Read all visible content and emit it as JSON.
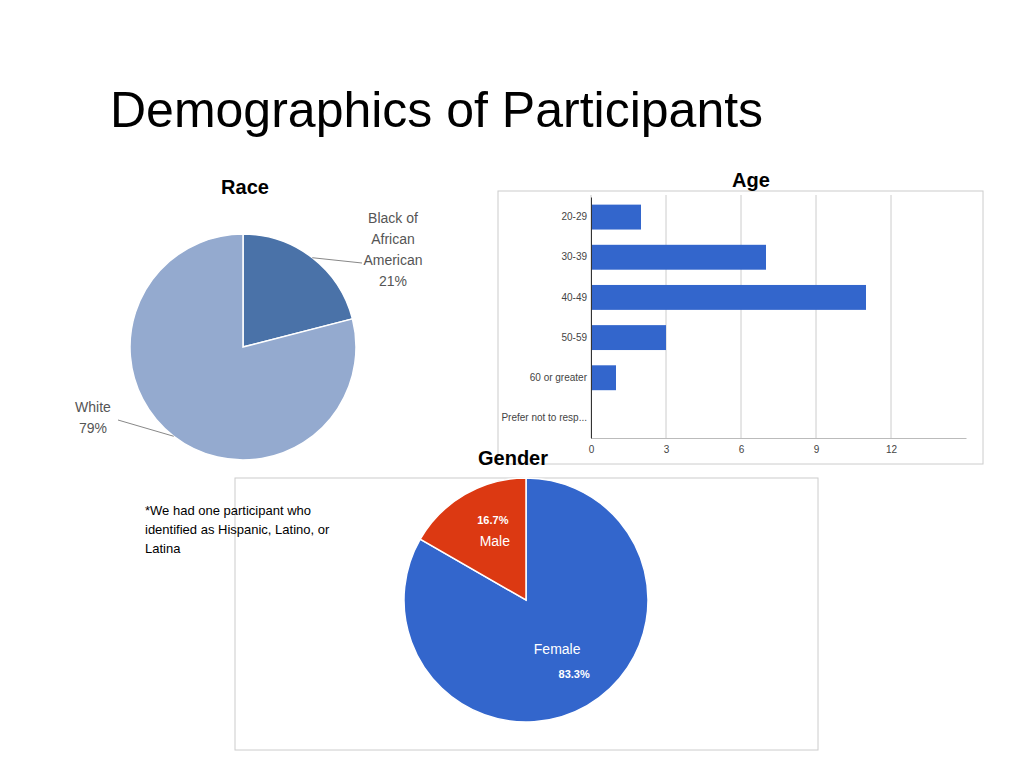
{
  "title": "Demographics of Participants",
  "chart_data": [
    {
      "type": "pie",
      "title": "Race",
      "categories": [
        "Black of African American",
        "White"
      ],
      "values": [
        21,
        79
      ],
      "value_labels": [
        "21%",
        "79%"
      ],
      "colors": [
        "#4a72a8",
        "#94aacf"
      ],
      "data_labels": true,
      "annotations": [
        "*We had one participant who identified as Hispanic, Latino, or Latina"
      ]
    },
    {
      "type": "bar",
      "title": "Age",
      "orientation": "horizontal",
      "categories": [
        "20-29",
        "30-39",
        "40-49",
        "50-59",
        "60 or greater",
        "Prefer not to resp..."
      ],
      "values": [
        2,
        7,
        11,
        3,
        1,
        0
      ],
      "color": "#3366cc",
      "xlim": [
        0,
        15
      ],
      "xticks": [
        0,
        3,
        6,
        9,
        12
      ],
      "grid": true
    },
    {
      "type": "pie",
      "title": "Gender",
      "categories": [
        "Female",
        "Male"
      ],
      "values": [
        83.3,
        16.7
      ],
      "value_labels": [
        "83.3%",
        "16.7%"
      ],
      "colors": [
        "#3366cc",
        "#dc3912"
      ],
      "data_labels": true
    }
  ]
}
